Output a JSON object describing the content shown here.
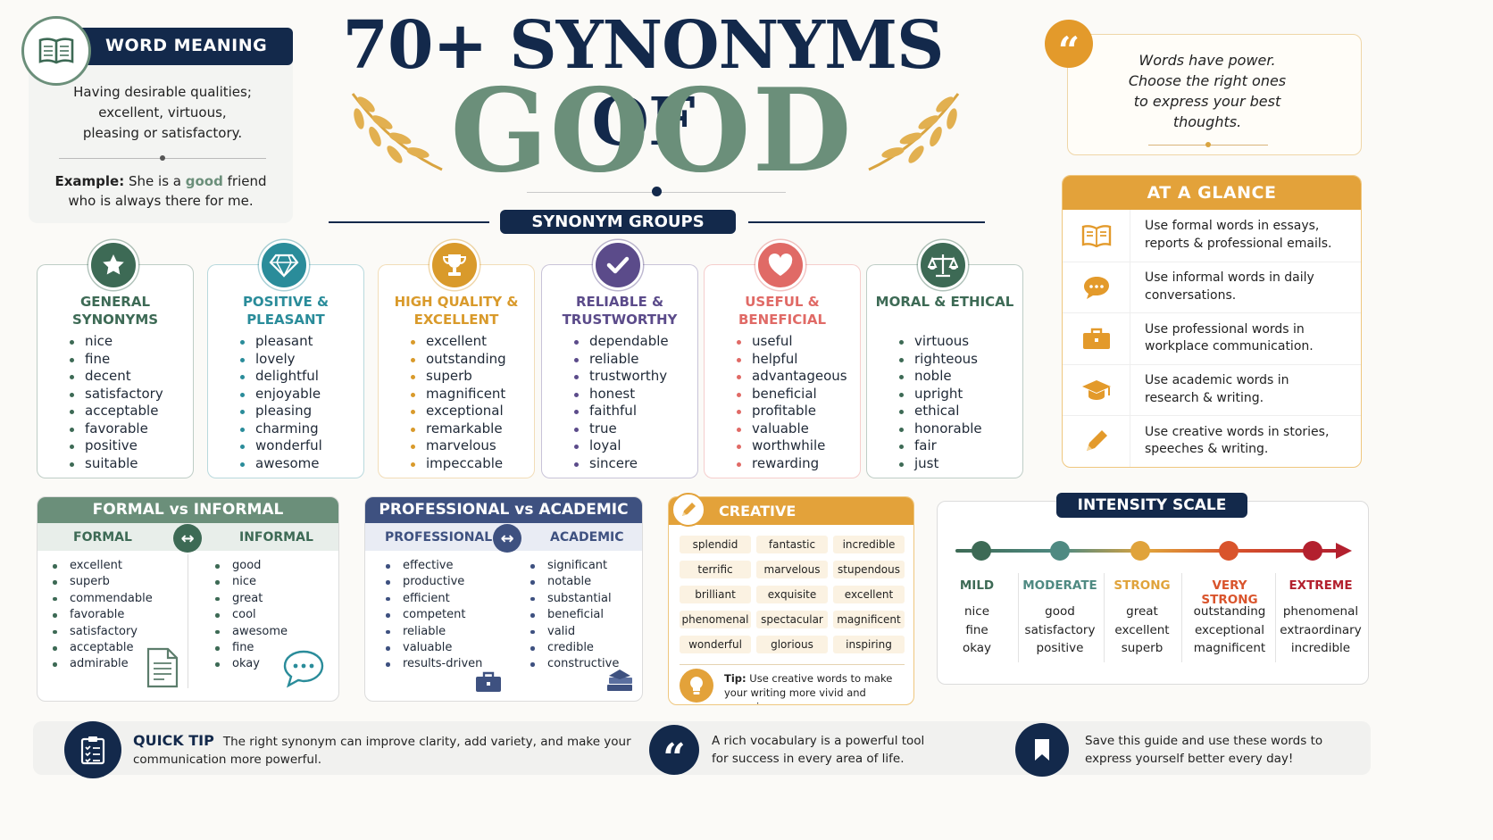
{
  "title": {
    "line1": "70+ SYNONYMS OF",
    "word": "GOOD"
  },
  "word_meaning": {
    "header": "WORD MEANING",
    "definition": "Having desirable qualities; excellent, virtuous, pleasing or satisfactory.",
    "example_label": "Example:",
    "example_pre": "She is a",
    "example_word": "good",
    "example_post": "friend who is always there for me."
  },
  "quote": {
    "text": "Words have power. Choose the right ones to express your best thoughts."
  },
  "synonym_groups_label": "SYNONYM GROUPS",
  "groups": [
    {
      "title": "GENERAL SYNONYMS",
      "color": "#3d6a55",
      "words": [
        "nice",
        "fine",
        "decent",
        "satisfactory",
        "acceptable",
        "favorable",
        "positive",
        "suitable"
      ]
    },
    {
      "title": "POSITIVE & PLEASANT",
      "color": "#2a8c9a",
      "words": [
        "pleasant",
        "lovely",
        "delightful",
        "enjoyable",
        "pleasing",
        "charming",
        "wonderful",
        "awesome"
      ]
    },
    {
      "title": "HIGH QUALITY & EXCELLENT",
      "color": "#d99a2b",
      "words": [
        "excellent",
        "outstanding",
        "superb",
        "magnificent",
        "exceptional",
        "remarkable",
        "marvelous",
        "impeccable"
      ]
    },
    {
      "title": "RELIABLE & TRUSTWORTHY",
      "color": "#5b4b8a",
      "words": [
        "dependable",
        "reliable",
        "trustworthy",
        "honest",
        "faithful",
        "true",
        "loyal",
        "sincere"
      ]
    },
    {
      "title": "USEFUL & BENEFICIAL",
      "color": "#e06a66",
      "words": [
        "useful",
        "helpful",
        "advantageous",
        "beneficial",
        "profitable",
        "valuable",
        "worthwhile",
        "rewarding"
      ]
    },
    {
      "title": "MORAL & ETHICAL",
      "color": "#3d6a55",
      "words": [
        "virtuous",
        "righteous",
        "noble",
        "upright",
        "ethical",
        "honorable",
        "fair",
        "just"
      ]
    }
  ],
  "at_a_glance": {
    "header": "AT A GLANCE",
    "items": [
      {
        "icon": "book-icon",
        "text": "Use formal words in essays, reports & professional emails."
      },
      {
        "icon": "chat-icon",
        "text": "Use informal words in daily conversations."
      },
      {
        "icon": "briefcase-icon",
        "text": "Use professional words in workplace communication."
      },
      {
        "icon": "graduation-cap-icon",
        "text": "Use academic words in research & writing."
      },
      {
        "icon": "pencil-icon",
        "text": "Use creative words in stories, speeches & writing."
      }
    ]
  },
  "formal_informal": {
    "header": "FORMAL vs INFORMAL",
    "left_label": "FORMAL",
    "right_label": "INFORMAL",
    "left": [
      "excellent",
      "superb",
      "commendable",
      "favorable",
      "satisfactory",
      "acceptable",
      "admirable"
    ],
    "right": [
      "good",
      "nice",
      "great",
      "cool",
      "awesome",
      "fine",
      "okay"
    ]
  },
  "prof_academic": {
    "header": "PROFESSIONAL vs ACADEMIC",
    "left_label": "PROFESSIONAL",
    "right_label": "ACADEMIC",
    "left": [
      "effective",
      "productive",
      "efficient",
      "competent",
      "reliable",
      "valuable",
      "results-driven"
    ],
    "right": [
      "significant",
      "notable",
      "substantial",
      "beneficial",
      "valid",
      "credible",
      "constructive"
    ]
  },
  "creative": {
    "header": "CREATIVE ALTERNATIVES",
    "words": [
      "splendid",
      "fantastic",
      "incredible",
      "terrific",
      "marvelous",
      "stupendous",
      "brilliant",
      "exquisite",
      "excellent",
      "phenomenal",
      "spectacular",
      "magnificent",
      "wonderful",
      "glorious",
      "inspiring"
    ],
    "tip_label": "Tip:",
    "tip": "Use creative words to make your writing more vivid and engaging."
  },
  "intensity": {
    "header": "INTENSITY SCALE",
    "levels": [
      {
        "label": "MILD",
        "color": "#3d6a55",
        "words": [
          "nice",
          "fine",
          "okay"
        ]
      },
      {
        "label": "MODERATE",
        "color": "#4f8a82",
        "words": [
          "good",
          "satisfactory",
          "positive"
        ]
      },
      {
        "label": "STRONG",
        "color": "#e0a33b",
        "words": [
          "great",
          "excellent",
          "superb"
        ]
      },
      {
        "label": "VERY STRONG",
        "color": "#d9542c",
        "words": [
          "outstanding",
          "exceptional",
          "magnificent"
        ]
      },
      {
        "label": "EXTREME",
        "color": "#b3202e",
        "words": [
          "phenomenal",
          "extraordinary",
          "incredible"
        ]
      }
    ]
  },
  "footer": {
    "tip_label": "QUICK TIP",
    "tip_text": "The right synonym can improve clarity, add variety, and make your communication more powerful.",
    "quote_text": "A rich vocabulary is a powerful tool for success in every area of life.",
    "save_text": "Save this guide and use these words to express yourself better every day!"
  },
  "colors": {
    "navy": "#13294b",
    "sage": "#6b8f7a",
    "gold": "#d99a2b"
  }
}
